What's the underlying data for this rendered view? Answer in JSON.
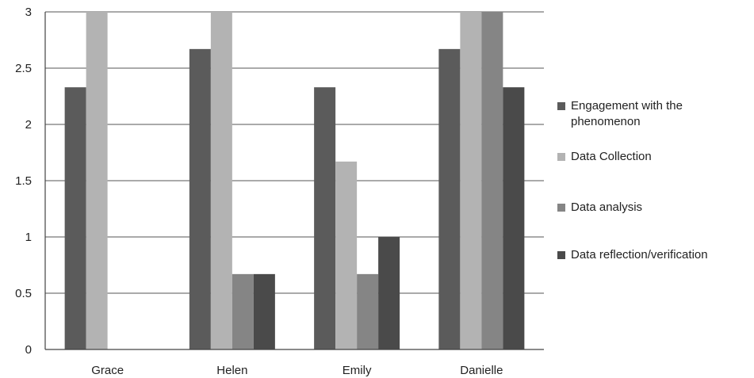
{
  "chart_data": {
    "type": "bar",
    "title": "",
    "xlabel": "",
    "ylabel": "",
    "categories": [
      "Grace",
      "Helen",
      "Emily",
      "Danielle"
    ],
    "ylim": [
      0,
      3
    ],
    "yticks": [
      "0",
      "0.5",
      "1",
      "1.5",
      "2",
      "2.5",
      "3"
    ],
    "grid": true,
    "legend_position": "right",
    "series": [
      {
        "name": "Engagement with the phenomenon",
        "color": "#5b5b5b",
        "values": [
          2.33,
          2.67,
          2.33,
          2.67
        ]
      },
      {
        "name": "Data Collection",
        "color": "#b3b3b3",
        "values": [
          3.0,
          3.0,
          1.67,
          3.0
        ]
      },
      {
        "name": "Data analysis",
        "color": "#858585",
        "values": [
          0,
          0.67,
          0.67,
          3.0
        ]
      },
      {
        "name": "Data reflection/verification",
        "color": "#4a4a4a",
        "values": [
          0,
          0.67,
          1.0,
          2.33
        ]
      }
    ]
  }
}
